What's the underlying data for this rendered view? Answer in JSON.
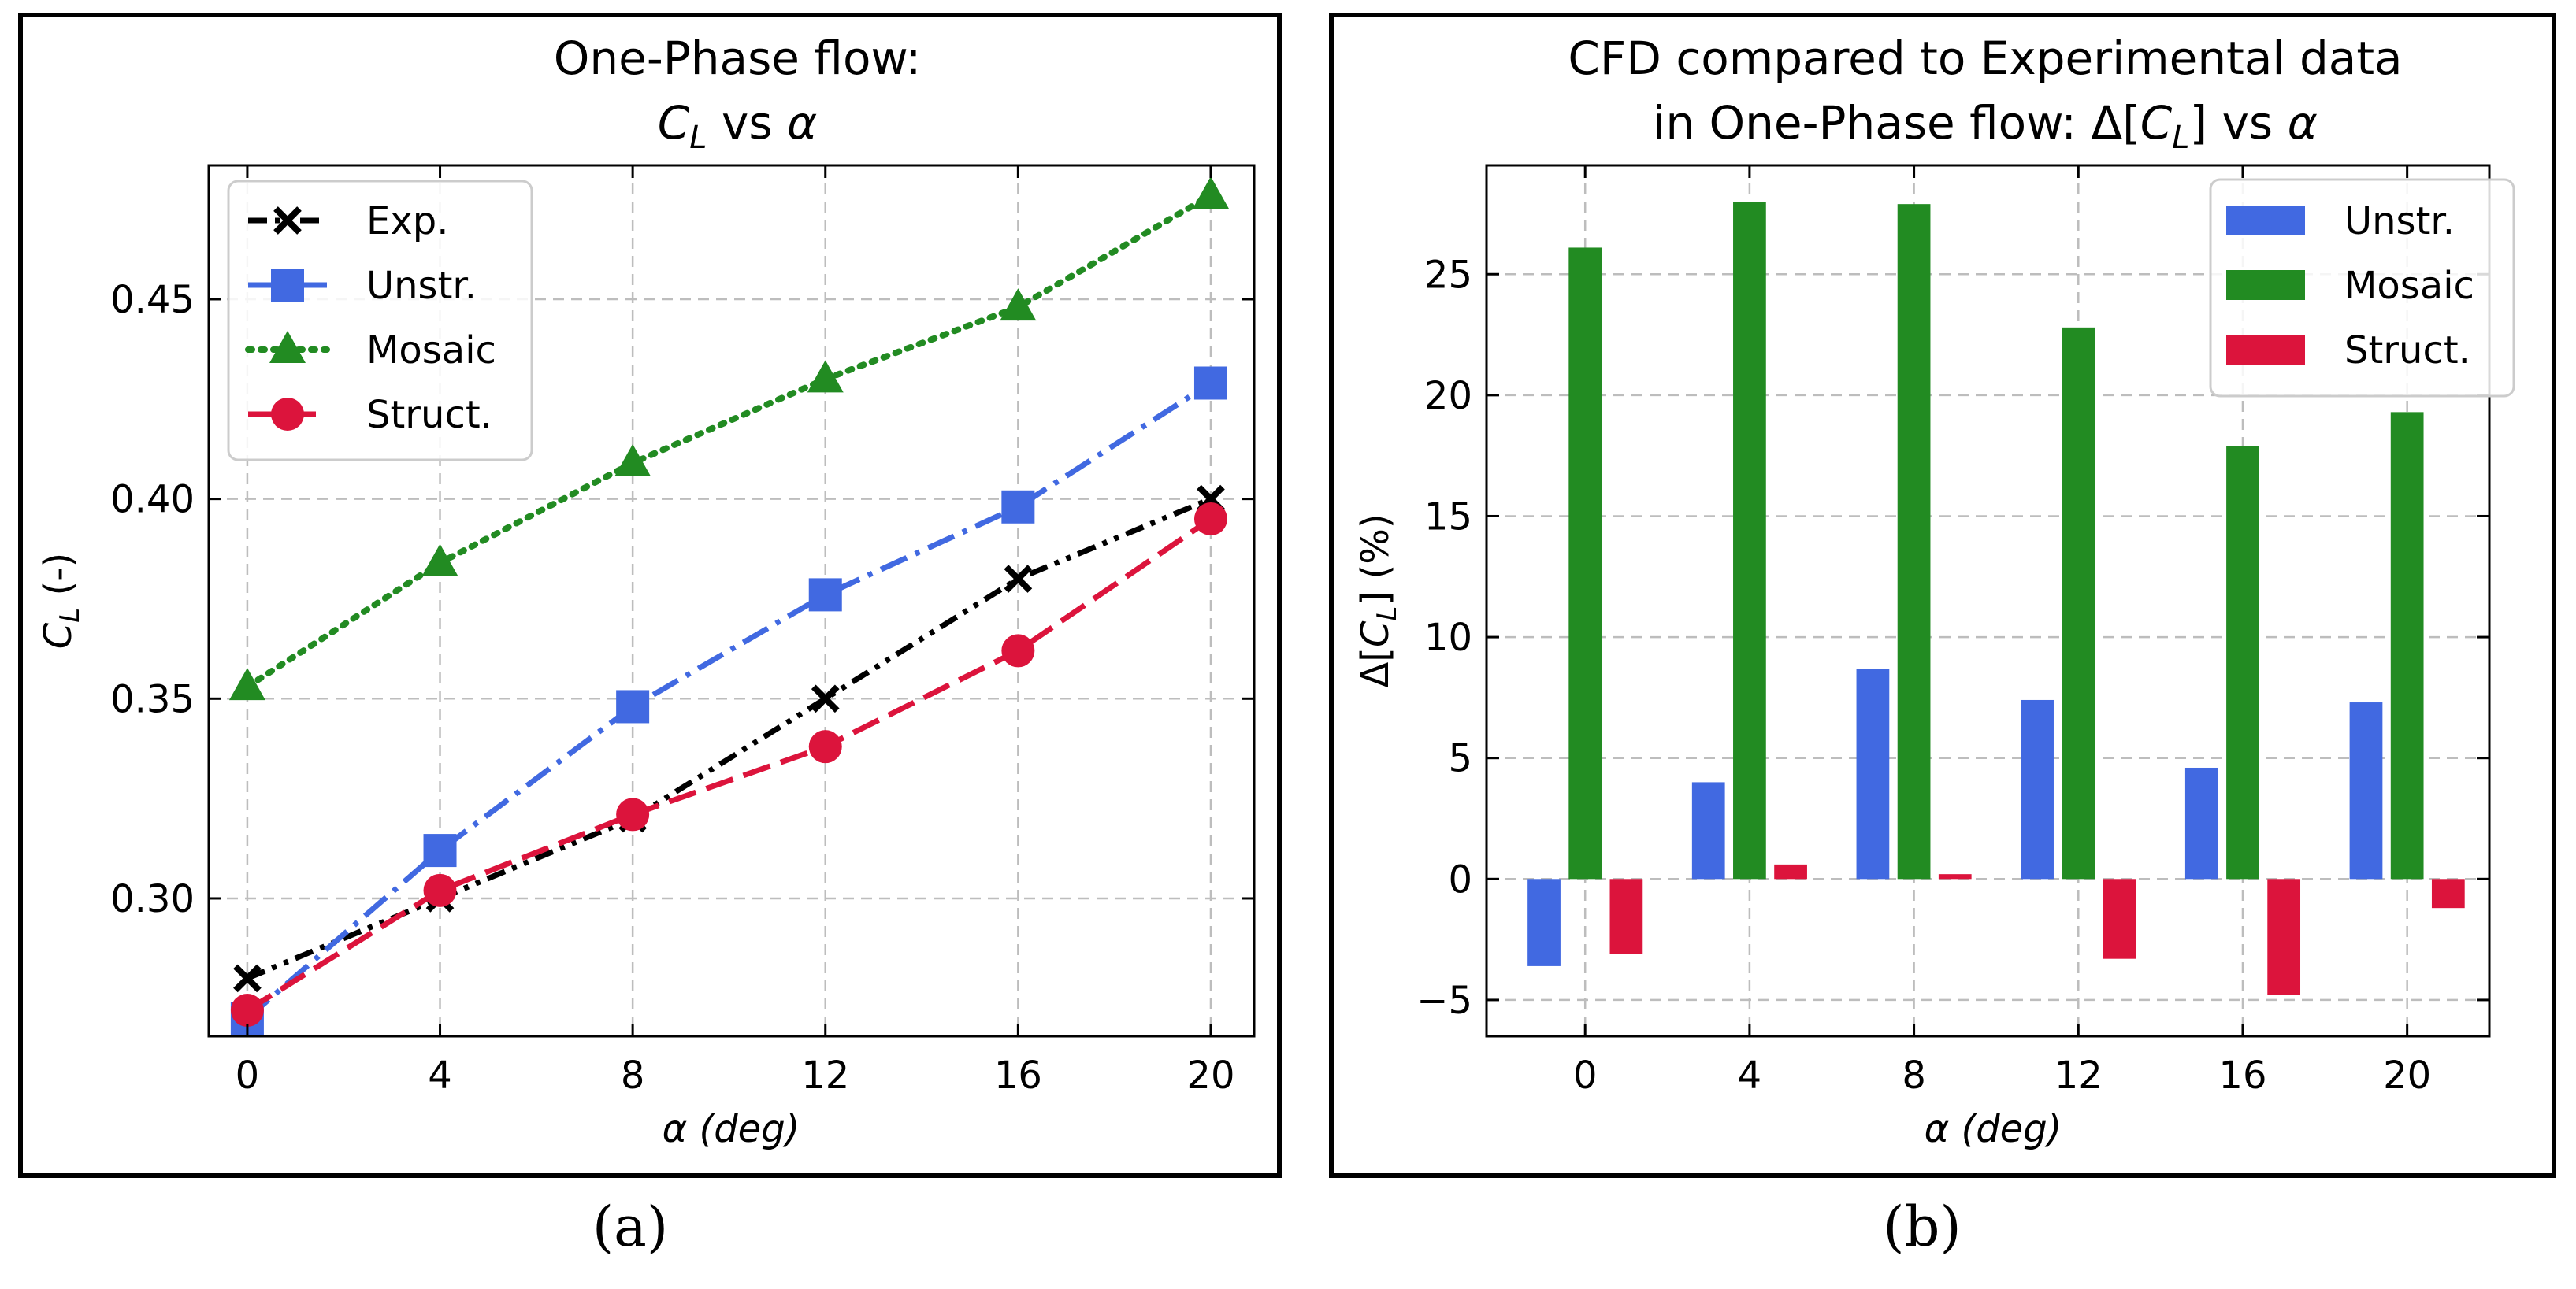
{
  "chart_data": [
    {
      "type": "line",
      "title_line1": "One-Phase flow:",
      "title_line2": {
        "lhs": "C",
        "lhs_sub": "L",
        "mid": " vs ",
        "rhs": "α"
      },
      "xlabel": "α (deg)",
      "ylabel": {
        "lhs": "C",
        "lhs_sub": "L",
        "rest": " (-)"
      },
      "x": [
        0,
        4,
        8,
        12,
        16,
        20
      ],
      "xlim": [
        -0.8,
        20.9
      ],
      "ylim": [
        0.2655,
        0.4835
      ],
      "xticks": [
        0,
        4,
        8,
        12,
        16,
        20
      ],
      "yticks": [
        0.3,
        0.35,
        0.4,
        0.45
      ],
      "ytick_labels": [
        "0.30",
        "0.35",
        "0.40",
        "0.45"
      ],
      "grid": true,
      "legend_placement": "top-left",
      "caption": "(a)",
      "series": [
        {
          "name": "Exp.",
          "color": "#000000",
          "marker": "x",
          "dash": "dashdotdot",
          "values": [
            0.28,
            0.3,
            0.32,
            0.35,
            0.38,
            0.4
          ]
        },
        {
          "name": "Unstr.",
          "color": "#4169E1",
          "marker": "square",
          "dash": "dashdot",
          "values": [
            0.27,
            0.312,
            0.348,
            0.376,
            0.398,
            0.429
          ]
        },
        {
          "name": "Mosaic",
          "color": "#228B22",
          "marker": "triangle",
          "dash": "dotted",
          "values": [
            0.353,
            0.384,
            0.409,
            0.43,
            0.448,
            0.476
          ]
        },
        {
          "name": "Struct.",
          "color": "#DC143C",
          "marker": "circle",
          "dash": "dashed",
          "values": [
            0.272,
            0.302,
            0.321,
            0.338,
            0.362,
            0.395
          ]
        }
      ]
    },
    {
      "type": "bar",
      "title_line1": "CFD compared to Experimental data",
      "title_line2": {
        "lhs": "in One-Phase flow: Δ[",
        "lhs_var": "C",
        "lhs_sub": "L",
        "mid": "] vs ",
        "rhs": "α"
      },
      "xlabel": "α (deg)",
      "ylabel": {
        "lhs": "Δ[",
        "var": "C",
        "sub": "L",
        "rest": "] (%)"
      },
      "categories": [
        "0",
        "4",
        "8",
        "12",
        "16",
        "20"
      ],
      "xlim": [
        -0.6,
        5.5
      ],
      "ylim": [
        -6.5,
        29.5
      ],
      "yticks": [
        -5,
        0,
        5,
        10,
        15,
        20,
        25
      ],
      "ytick_labels": [
        "−5",
        "0",
        "5",
        "10",
        "15",
        "20",
        "25"
      ],
      "grid": true,
      "legend_placement": "top-right",
      "caption": "(b)",
      "series": [
        {
          "name": "Unstr.",
          "color": "#4169E1",
          "values": [
            -3.6,
            4.0,
            8.7,
            7.4,
            4.6,
            7.3
          ]
        },
        {
          "name": "Mosaic",
          "color": "#228B22",
          "values": [
            26.1,
            28.0,
            27.9,
            22.8,
            17.9,
            19.3
          ]
        },
        {
          "name": "Struct.",
          "color": "#DC143C",
          "values": [
            -3.1,
            0.6,
            0.2,
            -3.3,
            -4.8,
            -1.2
          ]
        }
      ]
    }
  ]
}
